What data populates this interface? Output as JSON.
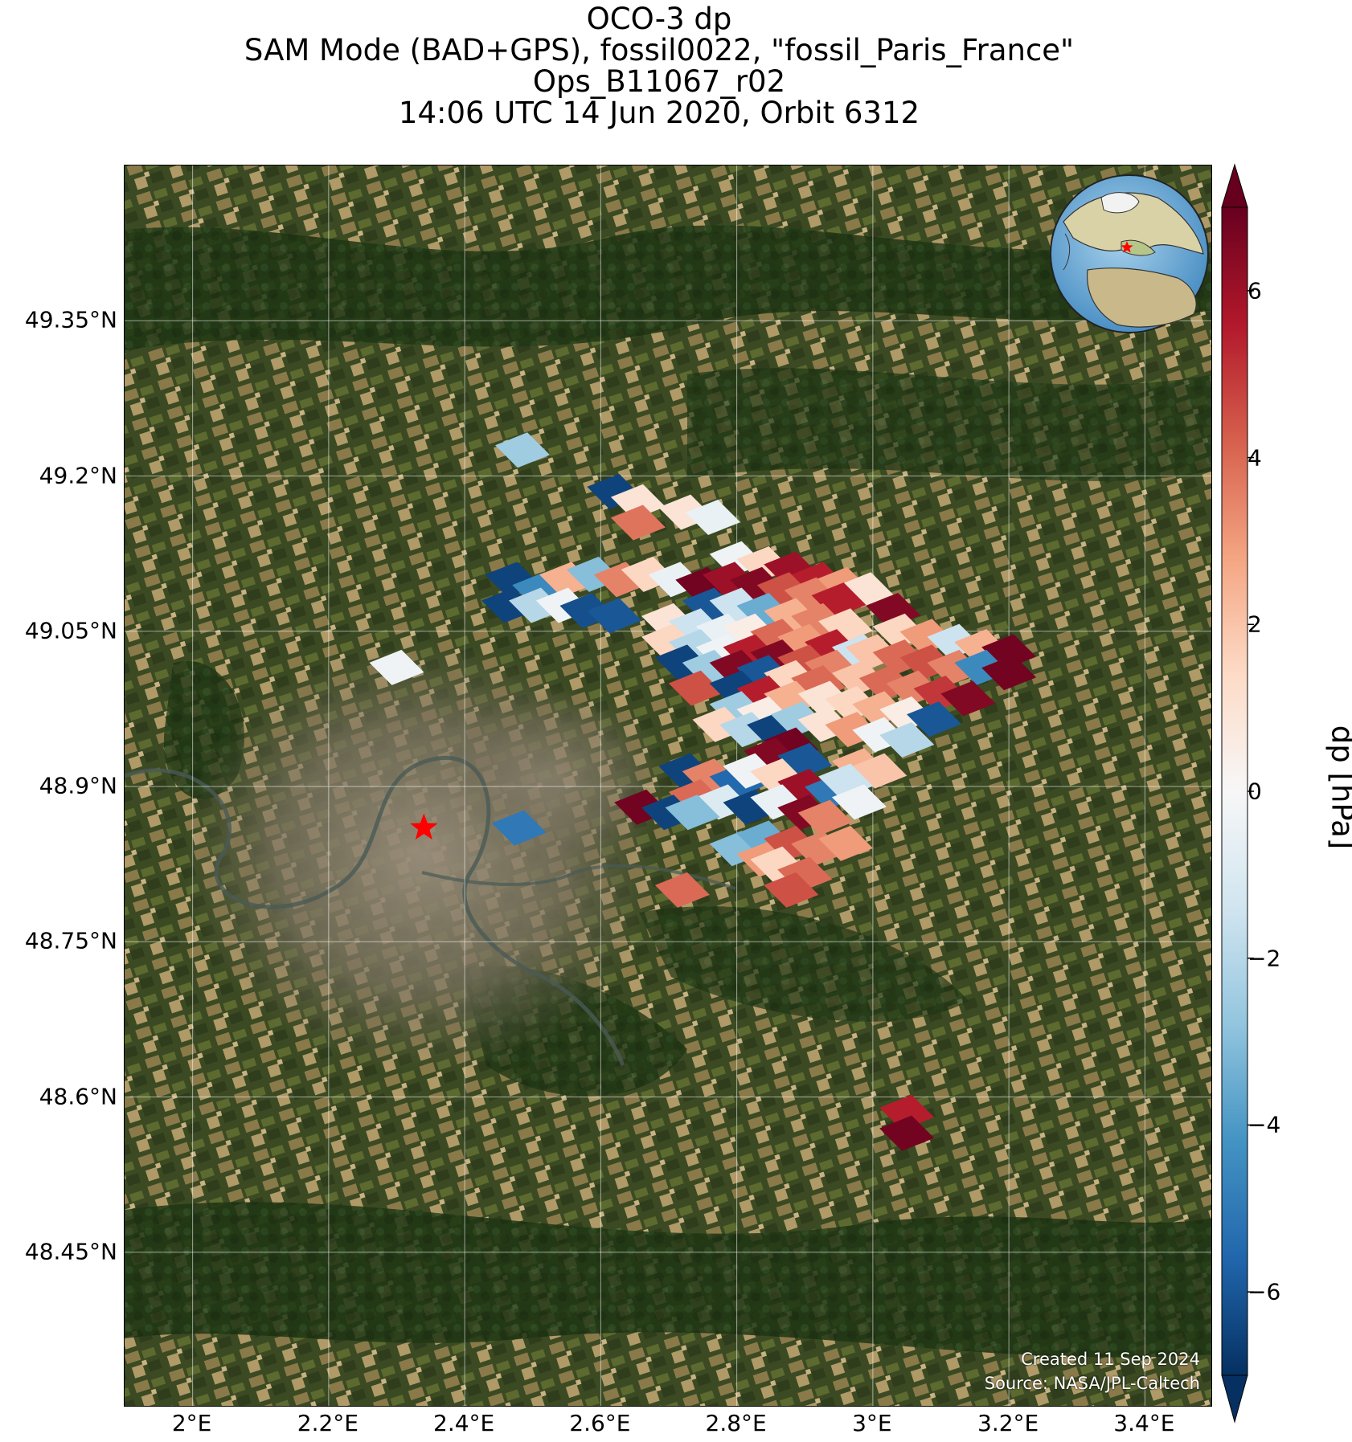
{
  "title_lines": [
    "OCO-3 dp",
    "SAM Mode (BAD+GPS), fossil0022, \"fossil_Paris_France\"",
    "Ops_B11067_r02",
    "14:06 UTC 14 Jun 2020, Orbit 6312"
  ],
  "map": {
    "basemap": "satellite-imagery",
    "lon_range": [
      1.9,
      3.5
    ],
    "lat_range": [
      48.3,
      49.5
    ],
    "lat_ticks": [
      {
        "value": 49.35,
        "label": "49.35°N"
      },
      {
        "value": 49.2,
        "label": "49.2°N"
      },
      {
        "value": 49.05,
        "label": "49.05°N"
      },
      {
        "value": 48.9,
        "label": "48.9°N"
      },
      {
        "value": 48.75,
        "label": "48.75°N"
      },
      {
        "value": 48.6,
        "label": "48.6°N"
      },
      {
        "value": 48.45,
        "label": "48.45°N"
      }
    ],
    "lon_ticks": [
      {
        "value": 2.0,
        "label": "2°E"
      },
      {
        "value": 2.2,
        "label": "2.2°E"
      },
      {
        "value": 2.4,
        "label": "2.4°E"
      },
      {
        "value": 2.6,
        "label": "2.6°E"
      },
      {
        "value": 2.8,
        "label": "2.8°E"
      },
      {
        "value": 3.0,
        "label": "3°E"
      },
      {
        "value": 3.2,
        "label": "3.2°E"
      },
      {
        "value": 3.4,
        "label": "3.4°E"
      }
    ],
    "grid": true,
    "target_marker": {
      "lon": 2.34,
      "lat": 48.86,
      "color": "#ff0000",
      "symbol": "star"
    },
    "inset_globe": {
      "position": "top-right",
      "marker_color": "#ff0000"
    }
  },
  "chart_data": {
    "type": "heatmap",
    "variable": "dp",
    "units": "hPa",
    "colorbar": {
      "label": "dp [hPa]",
      "vmin": -7,
      "vmax": 7,
      "colormap": "RdBu_r",
      "extend": "both",
      "ticks": [
        {
          "value": 6,
          "label": "6"
        },
        {
          "value": 4,
          "label": "4"
        },
        {
          "value": 2,
          "label": "2"
        },
        {
          "value": 0,
          "label": "0"
        },
        {
          "value": -2,
          "label": "−2"
        },
        {
          "value": -4,
          "label": "−4"
        },
        {
          "value": -6,
          "label": "−6"
        }
      ]
    },
    "soundings": [
      {
        "lon": 2.485,
        "lat": 49.225,
        "dp": -2.5
      },
      {
        "lon": 2.3,
        "lat": 49.015,
        "dp": -0.3
      },
      {
        "lon": 2.48,
        "lat": 48.86,
        "dp": -5.0
      },
      {
        "lon": 2.62,
        "lat": 49.185,
        "dp": -6.5
      },
      {
        "lon": 2.655,
        "lat": 49.175,
        "dp": 1.0
      },
      {
        "lon": 2.655,
        "lat": 49.155,
        "dp": 3.8
      },
      {
        "lon": 2.725,
        "lat": 49.165,
        "dp": 1.0
      },
      {
        "lon": 2.765,
        "lat": 49.16,
        "dp": -0.5
      },
      {
        "lon": 2.47,
        "lat": 49.1,
        "dp": -6.5
      },
      {
        "lon": 2.51,
        "lat": 49.09,
        "dp": -4.5
      },
      {
        "lon": 2.55,
        "lat": 49.1,
        "dp": 2.5
      },
      {
        "lon": 2.59,
        "lat": 49.105,
        "dp": -3.0
      },
      {
        "lon": 2.63,
        "lat": 49.1,
        "dp": 3.5
      },
      {
        "lon": 2.67,
        "lat": 49.105,
        "dp": 1.5
      },
      {
        "lon": 2.71,
        "lat": 49.1,
        "dp": -0.5
      },
      {
        "lon": 2.75,
        "lat": 49.095,
        "dp": 6.8
      },
      {
        "lon": 2.465,
        "lat": 49.075,
        "dp": -6.5
      },
      {
        "lon": 2.505,
        "lat": 49.075,
        "dp": -2.0
      },
      {
        "lon": 2.545,
        "lat": 49.075,
        "dp": -0.3
      },
      {
        "lon": 2.58,
        "lat": 49.07,
        "dp": -6.2
      },
      {
        "lon": 2.62,
        "lat": 49.065,
        "dp": -6.0
      },
      {
        "lon": 2.8,
        "lat": 49.12,
        "dp": -0.3
      },
      {
        "lon": 2.84,
        "lat": 49.115,
        "dp": 1.5
      },
      {
        "lon": 2.88,
        "lat": 49.11,
        "dp": 6.0
      },
      {
        "lon": 2.92,
        "lat": 49.1,
        "dp": 5.5
      },
      {
        "lon": 2.955,
        "lat": 49.095,
        "dp": 3.0
      },
      {
        "lon": 2.99,
        "lat": 49.09,
        "dp": 1.0
      },
      {
        "lon": 2.79,
        "lat": 49.1,
        "dp": 6.0
      },
      {
        "lon": 2.83,
        "lat": 49.095,
        "dp": 6.5
      },
      {
        "lon": 2.87,
        "lat": 49.09,
        "dp": 4.5
      },
      {
        "lon": 2.91,
        "lat": 49.085,
        "dp": 3.5
      },
      {
        "lon": 2.95,
        "lat": 49.08,
        "dp": 5.5
      },
      {
        "lon": 3.03,
        "lat": 49.07,
        "dp": 6.5
      },
      {
        "lon": 2.76,
        "lat": 49.075,
        "dp": -6.0
      },
      {
        "lon": 2.8,
        "lat": 49.075,
        "dp": -1.5
      },
      {
        "lon": 2.84,
        "lat": 49.07,
        "dp": -3.5
      },
      {
        "lon": 2.88,
        "lat": 49.065,
        "dp": 2.5
      },
      {
        "lon": 2.92,
        "lat": 49.06,
        "dp": 3.5
      },
      {
        "lon": 2.96,
        "lat": 49.055,
        "dp": 1.5
      },
      {
        "lon": 2.7,
        "lat": 49.06,
        "dp": 1.0
      },
      {
        "lon": 2.74,
        "lat": 49.055,
        "dp": -1.5
      },
      {
        "lon": 2.78,
        "lat": 49.05,
        "dp": -0.5
      },
      {
        "lon": 2.82,
        "lat": 49.05,
        "dp": 0.5
      },
      {
        "lon": 2.86,
        "lat": 49.045,
        "dp": 4.0
      },
      {
        "lon": 2.9,
        "lat": 49.04,
        "dp": 3.0
      },
      {
        "lon": 2.94,
        "lat": 49.035,
        "dp": 5.5
      },
      {
        "lon": 2.98,
        "lat": 49.03,
        "dp": -1.5
      },
      {
        "lon": 2.7,
        "lat": 49.04,
        "dp": 1.5
      },
      {
        "lon": 2.74,
        "lat": 49.035,
        "dp": -2.0
      },
      {
        "lon": 2.78,
        "lat": 49.03,
        "dp": -0.3
      },
      {
        "lon": 2.82,
        "lat": 49.03,
        "dp": 5.5
      },
      {
        "lon": 2.86,
        "lat": 49.025,
        "dp": 6.5
      },
      {
        "lon": 2.9,
        "lat": 49.02,
        "dp": 4.5
      },
      {
        "lon": 2.94,
        "lat": 49.015,
        "dp": 3.5
      },
      {
        "lon": 2.72,
        "lat": 49.02,
        "dp": -6.5
      },
      {
        "lon": 2.76,
        "lat": 49.015,
        "dp": -2.5
      },
      {
        "lon": 2.8,
        "lat": 49.015,
        "dp": 6.5
      },
      {
        "lon": 2.84,
        "lat": 49.01,
        "dp": -6.0
      },
      {
        "lon": 2.88,
        "lat": 49.005,
        "dp": 1.5
      },
      {
        "lon": 2.92,
        "lat": 49.0,
        "dp": 4.0
      },
      {
        "lon": 2.74,
        "lat": 48.995,
        "dp": 4.5
      },
      {
        "lon": 2.8,
        "lat": 48.995,
        "dp": -6.5
      },
      {
        "lon": 2.84,
        "lat": 48.99,
        "dp": 5.5
      },
      {
        "lon": 2.88,
        "lat": 48.985,
        "dp": 2.5
      },
      {
        "lon": 2.8,
        "lat": 48.975,
        "dp": -2.5
      },
      {
        "lon": 2.84,
        "lat": 48.97,
        "dp": 0.5
      },
      {
        "lon": 2.775,
        "lat": 48.96,
        "dp": 1.5
      },
      {
        "lon": 2.815,
        "lat": 48.955,
        "dp": -2.0
      },
      {
        "lon": 2.855,
        "lat": 48.955,
        "dp": -6.5
      },
      {
        "lon": 3.04,
        "lat": 49.05,
        "dp": 1.5
      },
      {
        "lon": 3.08,
        "lat": 49.045,
        "dp": 3.0
      },
      {
        "lon": 3.12,
        "lat": 49.04,
        "dp": -1.5
      },
      {
        "lon": 3.16,
        "lat": 49.035,
        "dp": 2.5
      },
      {
        "lon": 3.2,
        "lat": 49.03,
        "dp": 6.8
      },
      {
        "lon": 3.0,
        "lat": 49.03,
        "dp": 2.0
      },
      {
        "lon": 3.04,
        "lat": 49.025,
        "dp": 4.0
      },
      {
        "lon": 3.08,
        "lat": 49.02,
        "dp": 4.5
      },
      {
        "lon": 3.12,
        "lat": 49.015,
        "dp": 3.5
      },
      {
        "lon": 3.16,
        "lat": 49.015,
        "dp": -4.5
      },
      {
        "lon": 3.2,
        "lat": 49.01,
        "dp": 6.8
      },
      {
        "lon": 2.98,
        "lat": 49.005,
        "dp": 2.0
      },
      {
        "lon": 3.02,
        "lat": 49.0,
        "dp": 4.0
      },
      {
        "lon": 3.06,
        "lat": 48.995,
        "dp": 3.5
      },
      {
        "lon": 3.1,
        "lat": 48.99,
        "dp": 5.0
      },
      {
        "lon": 3.14,
        "lat": 48.985,
        "dp": 6.5
      },
      {
        "lon": 2.93,
        "lat": 48.985,
        "dp": 1.0
      },
      {
        "lon": 2.97,
        "lat": 48.98,
        "dp": 1.5
      },
      {
        "lon": 3.01,
        "lat": 48.975,
        "dp": 2.5
      },
      {
        "lon": 3.05,
        "lat": 48.97,
        "dp": 0.5
      },
      {
        "lon": 3.09,
        "lat": 48.965,
        "dp": -6.0
      },
      {
        "lon": 2.89,
        "lat": 48.965,
        "dp": -2.5
      },
      {
        "lon": 2.93,
        "lat": 48.96,
        "dp": 1.0
      },
      {
        "lon": 2.97,
        "lat": 48.955,
        "dp": 3.0
      },
      {
        "lon": 3.01,
        "lat": 48.95,
        "dp": -0.3
      },
      {
        "lon": 3.05,
        "lat": 48.945,
        "dp": -2.0
      },
      {
        "lon": 2.88,
        "lat": 48.94,
        "dp": 6.8
      },
      {
        "lon": 2.725,
        "lat": 48.915,
        "dp": -6.5
      },
      {
        "lon": 2.76,
        "lat": 48.91,
        "dp": 3.5
      },
      {
        "lon": 2.8,
        "lat": 48.905,
        "dp": -5.5
      },
      {
        "lon": 2.85,
        "lat": 48.93,
        "dp": 6.5
      },
      {
        "lon": 2.9,
        "lat": 48.925,
        "dp": -6.0
      },
      {
        "lon": 2.74,
        "lat": 48.89,
        "dp": 4.0
      },
      {
        "lon": 2.78,
        "lat": 48.885,
        "dp": -1.0
      },
      {
        "lon": 2.82,
        "lat": 48.88,
        "dp": -6.5
      },
      {
        "lon": 2.82,
        "lat": 48.915,
        "dp": -0.3
      },
      {
        "lon": 2.86,
        "lat": 48.91,
        "dp": 1.5
      },
      {
        "lon": 2.9,
        "lat": 48.9,
        "dp": 6.0
      },
      {
        "lon": 2.94,
        "lat": 48.895,
        "dp": -5.0
      },
      {
        "lon": 2.98,
        "lat": 48.92,
        "dp": 2.5
      },
      {
        "lon": 3.01,
        "lat": 48.915,
        "dp": 2.0
      },
      {
        "lon": 2.96,
        "lat": 48.905,
        "dp": -1.5
      },
      {
        "lon": 2.98,
        "lat": 48.885,
        "dp": -0.3
      },
      {
        "lon": 2.86,
        "lat": 48.885,
        "dp": -0.5
      },
      {
        "lon": 2.9,
        "lat": 48.875,
        "dp": 6.5
      },
      {
        "lon": 2.93,
        "lat": 48.87,
        "dp": 3.5
      },
      {
        "lon": 2.66,
        "lat": 48.88,
        "dp": 6.8
      },
      {
        "lon": 2.7,
        "lat": 48.875,
        "dp": -6.5
      },
      {
        "lon": 2.735,
        "lat": 48.875,
        "dp": -3.0
      },
      {
        "lon": 2.8,
        "lat": 48.84,
        "dp": -3.0
      },
      {
        "lon": 2.84,
        "lat": 48.85,
        "dp": -3.5
      },
      {
        "lon": 2.84,
        "lat": 48.83,
        "dp": 3.0
      },
      {
        "lon": 2.88,
        "lat": 48.845,
        "dp": 4.5
      },
      {
        "lon": 2.92,
        "lat": 48.84,
        "dp": 3.5
      },
      {
        "lon": 2.96,
        "lat": 48.845,
        "dp": 3.0
      },
      {
        "lon": 2.86,
        "lat": 48.825,
        "dp": 1.5
      },
      {
        "lon": 2.9,
        "lat": 48.815,
        "dp": 4.0
      },
      {
        "lon": 2.88,
        "lat": 48.8,
        "dp": 4.5
      },
      {
        "lon": 2.72,
        "lat": 48.8,
        "dp": 4.0
      },
      {
        "lon": 3.05,
        "lat": 48.585,
        "dp": 5.5
      },
      {
        "lon": 3.05,
        "lat": 48.565,
        "dp": 6.8
      }
    ]
  },
  "credit": {
    "created": "Created 11 Sep 2024",
    "source": "Source: NASA/JPL-Caltech"
  }
}
